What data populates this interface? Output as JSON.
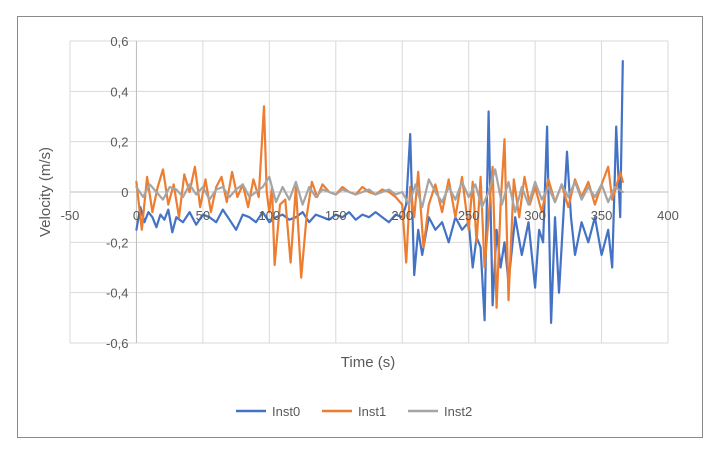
{
  "chart_data": {
    "type": "line",
    "title": "",
    "xlabel": "Time (s)",
    "ylabel": "Velocity (m/s)",
    "xlim": [
      -50,
      400
    ],
    "ylim": [
      -0.6,
      0.6
    ],
    "x_ticks": [
      -50,
      0,
      50,
      100,
      150,
      200,
      250,
      300,
      350,
      400
    ],
    "x_tick_labels": [
      "-50",
      "0",
      "50",
      "100",
      "150",
      "200",
      "250",
      "300",
      "350",
      "400"
    ],
    "y_ticks": [
      -0.6,
      -0.4,
      -0.2,
      0,
      0.2,
      0.4,
      0.6
    ],
    "y_tick_labels": [
      "-0,6",
      "-0,4",
      "-0,2",
      "0",
      "0,2",
      "0,4",
      "0,6"
    ],
    "grid": true,
    "legend_position": "bottom",
    "colors": {
      "Inst0": "#4472c4",
      "Inst1": "#ed7d31",
      "Inst2": "#a5a5a5",
      "grid": "#d9d9d9",
      "axis": "#bfbfbf",
      "text": "#595959"
    },
    "series": [
      {
        "name": "Inst0",
        "x": [
          0,
          3,
          6,
          9,
          12,
          15,
          18,
          21,
          24,
          27,
          30,
          35,
          40,
          45,
          50,
          55,
          60,
          65,
          70,
          75,
          80,
          85,
          90,
          95,
          100,
          105,
          110,
          115,
          120,
          125,
          130,
          135,
          140,
          145,
          150,
          155,
          160,
          165,
          170,
          175,
          180,
          185,
          190,
          195,
          200,
          203,
          206,
          209,
          212,
          215,
          220,
          225,
          230,
          235,
          240,
          245,
          250,
          253,
          256,
          259,
          262,
          265,
          268,
          271,
          274,
          277,
          280,
          285,
          290,
          295,
          300,
          303,
          306,
          309,
          312,
          315,
          318,
          321,
          324,
          327,
          330,
          335,
          340,
          345,
          350,
          355,
          358,
          361,
          364,
          366
        ],
        "y": [
          -0.15,
          -0.06,
          -0.12,
          -0.08,
          -0.1,
          -0.14,
          -0.09,
          -0.11,
          -0.07,
          -0.16,
          -0.1,
          -0.12,
          -0.08,
          -0.13,
          -0.09,
          -0.1,
          -0.12,
          -0.07,
          -0.11,
          -0.15,
          -0.09,
          -0.1,
          -0.12,
          -0.08,
          -0.12,
          -0.1,
          -0.09,
          -0.11,
          -0.1,
          -0.08,
          -0.12,
          -0.09,
          -0.1,
          -0.11,
          -0.09,
          -0.1,
          -0.08,
          -0.11,
          -0.09,
          -0.1,
          -0.08,
          -0.1,
          -0.12,
          -0.09,
          -0.1,
          -0.05,
          0.23,
          -0.33,
          -0.15,
          -0.25,
          -0.1,
          -0.15,
          -0.12,
          -0.2,
          -0.1,
          -0.15,
          -0.12,
          -0.3,
          -0.18,
          -0.22,
          -0.51,
          0.32,
          -0.45,
          -0.15,
          -0.3,
          -0.2,
          -0.36,
          -0.1,
          -0.25,
          -0.12,
          -0.38,
          -0.15,
          -0.2,
          0.26,
          -0.52,
          -0.1,
          -0.4,
          -0.12,
          0.16,
          -0.1,
          -0.25,
          -0.12,
          -0.2,
          -0.1,
          -0.25,
          -0.15,
          -0.3,
          0.26,
          -0.1,
          0.52
        ]
      },
      {
        "name": "Inst1",
        "x": [
          0,
          4,
          8,
          12,
          16,
          20,
          24,
          28,
          32,
          36,
          40,
          44,
          48,
          52,
          56,
          60,
          64,
          68,
          72,
          76,
          80,
          84,
          88,
          92,
          96,
          98,
          100,
          102,
          104,
          108,
          112,
          116,
          120,
          124,
          128,
          132,
          136,
          140,
          145,
          150,
          155,
          160,
          165,
          170,
          175,
          180,
          185,
          190,
          195,
          200,
          203,
          206,
          209,
          212,
          216,
          220,
          225,
          230,
          235,
          240,
          245,
          250,
          253,
          256,
          259,
          262,
          265,
          268,
          271,
          274,
          277,
          280,
          284,
          288,
          292,
          296,
          300,
          305,
          310,
          315,
          320,
          325,
          330,
          335,
          340,
          345,
          350,
          355,
          358,
          361,
          364,
          366
        ],
        "y": [
          0.04,
          -0.15,
          0.06,
          -0.08,
          0.02,
          0.09,
          -0.05,
          0.03,
          -0.1,
          0.07,
          0.0,
          0.1,
          -0.06,
          0.05,
          -0.08,
          0.02,
          0.06,
          -0.04,
          0.08,
          -0.02,
          0.03,
          -0.06,
          0.05,
          -0.02,
          0.34,
          0.0,
          -0.08,
          0.02,
          -0.29,
          -0.05,
          -0.03,
          -0.28,
          0.02,
          -0.34,
          -0.1,
          0.04,
          -0.02,
          0.03,
          0.0,
          -0.01,
          0.02,
          0.0,
          -0.01,
          0.02,
          0.0,
          -0.01,
          0.01,
          0.0,
          -0.02,
          -0.05,
          -0.28,
          0.02,
          -0.1,
          0.08,
          -0.22,
          -0.05,
          0.03,
          -0.08,
          0.05,
          -0.1,
          0.06,
          -0.15,
          0.04,
          -0.2,
          0.06,
          -0.3,
          -0.1,
          0.1,
          -0.46,
          -0.05,
          0.21,
          -0.43,
          0.05,
          -0.1,
          0.06,
          -0.05,
          0.02,
          -0.08,
          0.05,
          -0.04,
          0.03,
          -0.06,
          0.05,
          -0.02,
          0.04,
          -0.05,
          0.03,
          0.1,
          -0.03,
          0.02,
          0.08,
          0.04
        ]
      },
      {
        "name": "Inst2",
        "x": [
          0,
          5,
          10,
          15,
          20,
          25,
          30,
          35,
          40,
          45,
          50,
          55,
          60,
          65,
          70,
          75,
          80,
          85,
          90,
          95,
          100,
          105,
          110,
          115,
          120,
          125,
          130,
          135,
          140,
          145,
          150,
          155,
          160,
          165,
          170,
          175,
          180,
          185,
          190,
          195,
          200,
          205,
          210,
          215,
          220,
          225,
          230,
          235,
          240,
          245,
          250,
          255,
          260,
          265,
          270,
          275,
          280,
          285,
          290,
          295,
          300,
          305,
          310,
          315,
          320,
          325,
          330,
          335,
          340,
          345,
          350,
          355,
          360,
          366
        ],
        "y": [
          0.02,
          -0.02,
          0.03,
          0.0,
          -0.03,
          0.02,
          0.01,
          -0.02,
          0.03,
          -0.01,
          0.02,
          -0.03,
          0.01,
          0.02,
          -0.02,
          0.01,
          0.03,
          -0.02,
          0.0,
          0.02,
          0.06,
          -0.04,
          0.02,
          -0.03,
          0.04,
          -0.05,
          0.02,
          -0.02,
          0.01,
          0.0,
          -0.01,
          0.01,
          0.0,
          -0.01,
          0.0,
          0.01,
          -0.01,
          0.0,
          0.01,
          -0.01,
          0.0,
          -0.05,
          0.03,
          -0.06,
          0.05,
          0.0,
          -0.04,
          0.02,
          -0.03,
          0.04,
          -0.02,
          0.03,
          -0.06,
          0.0,
          0.09,
          -0.05,
          0.04,
          -0.08,
          0.02,
          -0.05,
          0.04,
          -0.03,
          0.02,
          -0.04,
          0.03,
          -0.02,
          0.04,
          -0.03,
          0.02,
          -0.02,
          0.03,
          -0.04,
          0.02,
          0.0
        ]
      }
    ]
  }
}
